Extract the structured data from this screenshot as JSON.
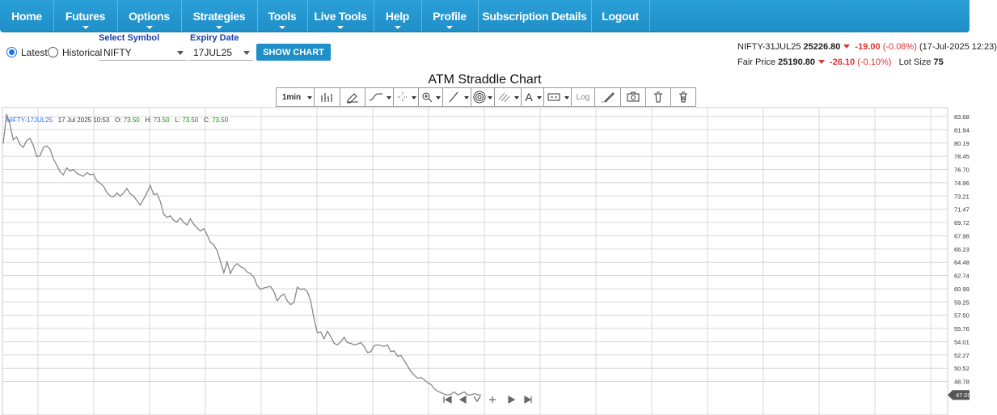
{
  "nav": {
    "items": [
      {
        "label": "Home",
        "caret": false
      },
      {
        "label": "Futures",
        "caret": true
      },
      {
        "label": "Options",
        "caret": true
      },
      {
        "label": "Strategies",
        "caret": true
      },
      {
        "label": "Tools",
        "caret": true
      },
      {
        "label": "Live Tools",
        "caret": true
      },
      {
        "label": "Help",
        "caret": true
      },
      {
        "label": "Profile",
        "caret": true
      },
      {
        "label": "Subscription Details",
        "caret": false
      },
      {
        "label": "Logout",
        "caret": false
      }
    ]
  },
  "controls": {
    "latest_label": "Latest",
    "historical_label": "Historical",
    "selected_mode": "Latest",
    "symbol_label": "Select Symbol",
    "symbol_value": "NIFTY",
    "expiry_label": "Expiry Date",
    "expiry_value": "17JUL25",
    "show_chart_label": "SHOW CHART"
  },
  "quote": {
    "future_name": "NIFTY-31JUL25",
    "future_price": "25226.80",
    "future_change": "-19.00",
    "future_change_pct": "(-0.08%)",
    "timestamp": "(17-Jul-2025 12:23)",
    "fair_price_label": "Fair Price",
    "fair_price": "25190.80",
    "fair_change": "-26.10",
    "fair_change_pct": "(-0.10%)",
    "lot_size_label": "Lot Size",
    "lot_size": "75"
  },
  "chart_title": "ATM Straddle Chart",
  "toolbar": {
    "interval": "1min",
    "log_label": "Log",
    "icons": [
      "chart-type-icon",
      "indicator-icon",
      "line-style-icon",
      "crosshair-icon",
      "zoom-icon",
      "trendline-icon",
      "fibonacci-icon",
      "channel-icon",
      "text-icon",
      "range-icon",
      "log-button",
      "draw-icon",
      "camera-icon",
      "trash-drawing-icon",
      "delete-all-icon"
    ]
  },
  "legend": {
    "symbol": "NIFTY-17JUL25",
    "datetime": "17 Jul 2025 10:53",
    "o_label": "O:",
    "o": "73.50",
    "h_label": "H:",
    "h": "73.50",
    "l_label": "L:",
    "l": "73.50",
    "c_label": "C:",
    "c": "73.50"
  },
  "nav_controls": [
    "first-icon",
    "prev-icon",
    "zoom-out-icon",
    "zoom-in-icon",
    "next-icon",
    "last-icon"
  ],
  "chart_data": {
    "type": "line",
    "title": "ATM Straddle Chart",
    "xlabel": "",
    "ylabel": "",
    "ylim": [
      47.0,
      84.0
    ],
    "y_ticks": [
      "83.68",
      "81.94",
      "80.19",
      "78.45",
      "76.70",
      "74.96",
      "73.21",
      "71.47",
      "69.72",
      "67.98",
      "66.23",
      "64.48",
      "62.74",
      "60.99",
      "59.25",
      "57.50",
      "55.76",
      "54.01",
      "52.27",
      "50.52",
      "48.78",
      "47.00"
    ],
    "last_value_label": "47.00",
    "grid": true,
    "series": [
      {
        "values": [
          80.1,
          84.0,
          82.6,
          80.6,
          81.0,
          80.0,
          79.6,
          80.5,
          80.8,
          79.9,
          78.4,
          78.5,
          79.6,
          79.8,
          79.4,
          78.1,
          77.3,
          76.4,
          76.0,
          76.9,
          76.5,
          76.7,
          76.2,
          76.0,
          75.8,
          76.3,
          76.0,
          76.1,
          75.2,
          74.9,
          74.5,
          73.7,
          73.2,
          73.1,
          73.6,
          73.2,
          73.6,
          74.2,
          73.5,
          73.2,
          72.6,
          72.0,
          72.8,
          73.6,
          74.6,
          73.4,
          73.5,
          72.5,
          70.8,
          70.4,
          70.6,
          70.0,
          69.8,
          70.3,
          69.7,
          69.4,
          70.2,
          69.5,
          69.0,
          68.6,
          68.9,
          68.1,
          67.1,
          66.8,
          66.0,
          64.6,
          63.1,
          64.5,
          63.0,
          63.9,
          64.3,
          63.9,
          63.7,
          63.2,
          63.0,
          62.5,
          61.4,
          60.9,
          61.1,
          61.2,
          61.3,
          60.6,
          59.4,
          60.0,
          60.3,
          59.4,
          58.9,
          59.2,
          61.2,
          60.9,
          61.0,
          60.6,
          59.4,
          57.0,
          55.2,
          55.3,
          54.4,
          55.4,
          54.7,
          53.8,
          53.6,
          54.0,
          54.6,
          53.9,
          53.8,
          53.6,
          53.7,
          53.9,
          53.4,
          52.6,
          52.7,
          53.5,
          53.6,
          53.5,
          53.4,
          53.6,
          52.7,
          52.8,
          52.1,
          52.2,
          51.5,
          50.8,
          50.1,
          49.6,
          49.2,
          49.3,
          49.0,
          48.6,
          48.4,
          47.8,
          47.5,
          47.3,
          47.1,
          47.0,
          47.1,
          47.4,
          47.0,
          47.2,
          47.4,
          47.0,
          47.0,
          47.2,
          47.0,
          47.0
        ]
      }
    ]
  },
  "colors": {
    "nav_bg": "#1f8fc8",
    "line": "#888888",
    "grid": "#d8d8d8",
    "negative": "#dd3333",
    "label_blue": "#1a3fa8",
    "legend_green": "#0a8a0a"
  }
}
